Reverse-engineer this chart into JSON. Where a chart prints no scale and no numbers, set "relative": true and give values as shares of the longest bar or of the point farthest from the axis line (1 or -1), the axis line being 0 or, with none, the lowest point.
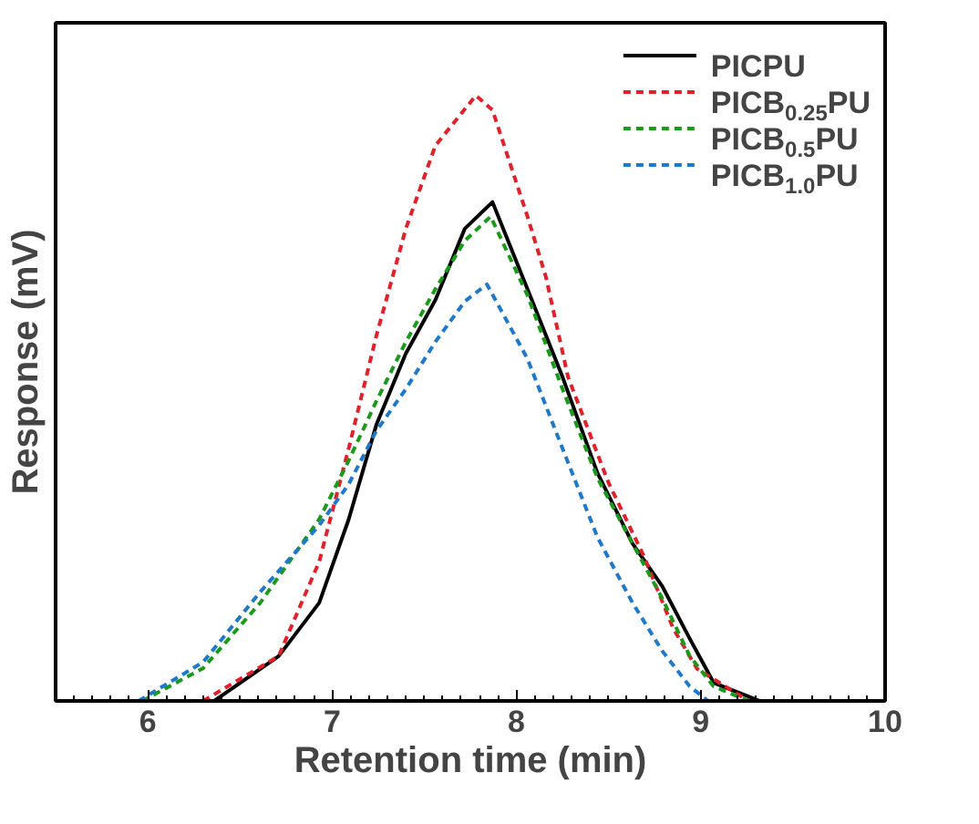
{
  "chart_data": {
    "type": "line",
    "relative": true,
    "xlabel": "Retention time (min)",
    "ylabel": "Response (mV)",
    "xlim": [
      5.5,
      10
    ],
    "xticks": [
      6,
      7,
      8,
      9,
      10
    ],
    "legend": "top right",
    "grid": false,
    "series": [
      {
        "name": "PICPU",
        "color": "#000000",
        "line_style": "solid",
        "x": [
          6.36,
          6.71,
          6.93,
          7.09,
          7.24,
          7.4,
          7.56,
          7.72,
          7.87,
          8.06,
          8.25,
          8.44,
          8.63,
          8.79,
          8.94,
          9.07,
          9.32
        ],
        "values": [
          0,
          0.074,
          0.162,
          0.3,
          0.456,
          0.574,
          0.662,
          0.78,
          0.824,
          0.68,
          0.535,
          0.376,
          0.26,
          0.19,
          0.103,
          0.03,
          0
        ]
      },
      {
        "name": "PICB$_{0.25}$PU",
        "color": "#e0202a",
        "line_style": "dashed",
        "x": [
          6.3,
          6.71,
          6.93,
          7.09,
          7.24,
          7.4,
          7.56,
          7.78,
          7.87,
          8.06,
          8.16,
          8.28,
          8.5,
          8.69,
          8.85,
          8.98,
          9.26
        ],
        "values": [
          0,
          0.074,
          0.23,
          0.417,
          0.603,
          0.78,
          0.917,
          1,
          0.976,
          0.8,
          0.7,
          0.535,
          0.36,
          0.24,
          0.12,
          0.053,
          0
        ]
      },
      {
        "name": "PICB$_{0.5}$PU",
        "color": "#1a9a1a",
        "line_style": "dashed",
        "x": [
          5.97,
          6.3,
          6.61,
          6.93,
          7.09,
          7.24,
          7.4,
          7.56,
          7.72,
          7.86,
          8.06,
          8.25,
          8.44,
          8.63,
          8.79,
          8.94,
          9.07,
          9.26
        ],
        "values": [
          0,
          0.054,
          0.162,
          0.3,
          0.397,
          0.495,
          0.593,
          0.68,
          0.76,
          0.8,
          0.67,
          0.515,
          0.368,
          0.26,
          0.17,
          0.074,
          0.024,
          0
        ]
      },
      {
        "name": "PICB$_{1.0}$PU",
        "color": "#1f78c8",
        "line_style": "dashed",
        "x": [
          5.95,
          6.3,
          6.61,
          6.93,
          7.09,
          7.24,
          7.4,
          7.56,
          7.72,
          7.84,
          8.06,
          8.25,
          8.44,
          8.63,
          8.79,
          8.94,
          9.04
        ],
        "values": [
          0,
          0.064,
          0.18,
          0.29,
          0.358,
          0.446,
          0.515,
          0.593,
          0.66,
          0.688,
          0.565,
          0.417,
          0.27,
          0.162,
          0.083,
          0.024,
          0
        ]
      }
    ]
  }
}
